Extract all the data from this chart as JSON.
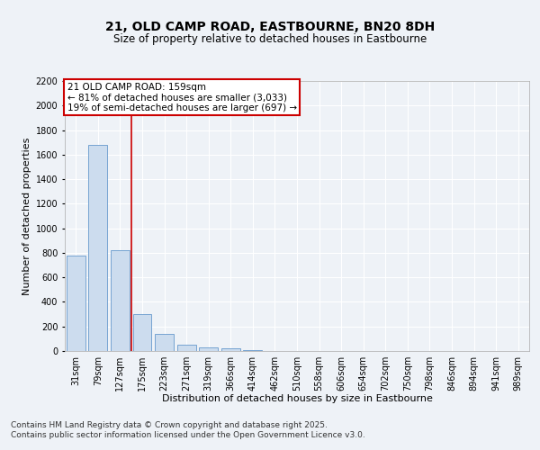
{
  "title_line1": "21, OLD CAMP ROAD, EASTBOURNE, BN20 8DH",
  "title_line2": "Size of property relative to detached houses in Eastbourne",
  "xlabel": "Distribution of detached houses by size in Eastbourne",
  "ylabel": "Number of detached properties",
  "categories": [
    "31sqm",
    "79sqm",
    "127sqm",
    "175sqm",
    "223sqm",
    "271sqm",
    "319sqm",
    "366sqm",
    "414sqm",
    "462sqm",
    "510sqm",
    "558sqm",
    "606sqm",
    "654sqm",
    "702sqm",
    "750sqm",
    "798sqm",
    "846sqm",
    "894sqm",
    "941sqm",
    "989sqm"
  ],
  "values": [
    780,
    1680,
    820,
    300,
    140,
    50,
    30,
    20,
    8,
    3,
    1,
    0,
    0,
    0,
    0,
    0,
    0,
    0,
    0,
    0,
    0
  ],
  "bar_color": "#ccdcee",
  "bar_edge_color": "#6699cc",
  "vline_color": "#cc0000",
  "vline_pos": 2.5,
  "annotation_text": "21 OLD CAMP ROAD: 159sqm\n← 81% of detached houses are smaller (3,033)\n19% of semi-detached houses are larger (697) →",
  "annotation_box_facecolor": "#ffffff",
  "annotation_box_edgecolor": "#cc0000",
  "background_color": "#eef2f7",
  "grid_color": "#ffffff",
  "ylim": [
    0,
    2200
  ],
  "yticks": [
    0,
    200,
    400,
    600,
    800,
    1000,
    1200,
    1400,
    1600,
    1800,
    2000,
    2200
  ],
  "title_fontsize": 10,
  "subtitle_fontsize": 8.5,
  "axis_label_fontsize": 8,
  "tick_fontsize": 7,
  "annotation_fontsize": 7.5,
  "footer_fontsize": 6.5,
  "footer_line1": "Contains HM Land Registry data © Crown copyright and database right 2025.",
  "footer_line2": "Contains public sector information licensed under the Open Government Licence v3.0."
}
